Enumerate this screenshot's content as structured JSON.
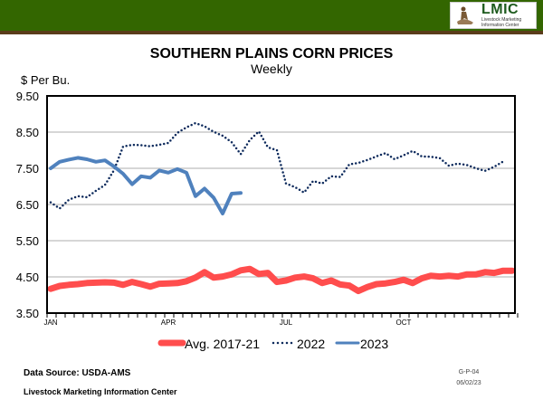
{
  "header": {
    "logo_text": "LMIC",
    "logo_subtext": "Livestock Marketing Information Center"
  },
  "chart_data": {
    "type": "line",
    "title": "SOUTHERN PLAINS CORN PRICES",
    "subtitle": "Weekly",
    "ylabel": "$ Per Bu.",
    "ylim": [
      3.5,
      9.5
    ],
    "yticks": [
      "9.50",
      "8.50",
      "7.50",
      "6.50",
      "5.50",
      "4.50",
      "3.50"
    ],
    "xlabels": [
      {
        "label": "JAN",
        "week": 0
      },
      {
        "label": "APR",
        "week": 13
      },
      {
        "label": "JUL",
        "week": 26
      },
      {
        "label": "OCT",
        "week": 39
      }
    ],
    "grid": true,
    "legend": "bottom",
    "series": [
      {
        "name": "Avg. 2017-21",
        "color": "#ff4d4d",
        "style": "solid-thick",
        "values": [
          4.17,
          4.25,
          4.28,
          4.3,
          4.33,
          4.34,
          4.35,
          4.34,
          4.28,
          4.36,
          4.3,
          4.23,
          4.31,
          4.32,
          4.33,
          4.38,
          4.48,
          4.63,
          4.48,
          4.51,
          4.57,
          4.68,
          4.72,
          4.58,
          4.61,
          4.36,
          4.4,
          4.48,
          4.51,
          4.46,
          4.33,
          4.4,
          4.29,
          4.26,
          4.11,
          4.22,
          4.3,
          4.32,
          4.36,
          4.42,
          4.33,
          4.46,
          4.53,
          4.51,
          4.53,
          4.51,
          4.57,
          4.57,
          4.63,
          4.61,
          4.67,
          4.67
        ]
      },
      {
        "name": "2022",
        "color": "#0d2a5c",
        "style": "dotted",
        "values": [
          6.56,
          6.39,
          6.63,
          6.73,
          6.7,
          6.88,
          7.04,
          7.45,
          8.1,
          8.15,
          8.14,
          8.11,
          8.15,
          8.2,
          8.48,
          8.63,
          8.75,
          8.66,
          8.51,
          8.4,
          8.22,
          7.89,
          8.28,
          8.52,
          8.08,
          8.0,
          7.08,
          6.98,
          6.83,
          7.15,
          7.08,
          7.28,
          7.26,
          7.61,
          7.65,
          7.73,
          7.83,
          7.92,
          7.75,
          7.86,
          7.98,
          7.83,
          7.82,
          7.78,
          7.57,
          7.63,
          7.59,
          7.5,
          7.43,
          7.54,
          7.69
        ]
      },
      {
        "name": "2023",
        "color": "#4f81bd",
        "style": "solid",
        "values": [
          7.5,
          7.68,
          7.74,
          7.79,
          7.75,
          7.68,
          7.72,
          7.55,
          7.35,
          7.06,
          7.28,
          7.24,
          7.44,
          7.38,
          7.48,
          7.38,
          6.73,
          6.94,
          6.69,
          6.25,
          6.8,
          6.82
        ]
      }
    ]
  },
  "footer": {
    "source": "Data Source: USDA-AMS",
    "org": "Livestock Marketing Information Center",
    "code": "G-P-04",
    "date": "06/02/23"
  }
}
